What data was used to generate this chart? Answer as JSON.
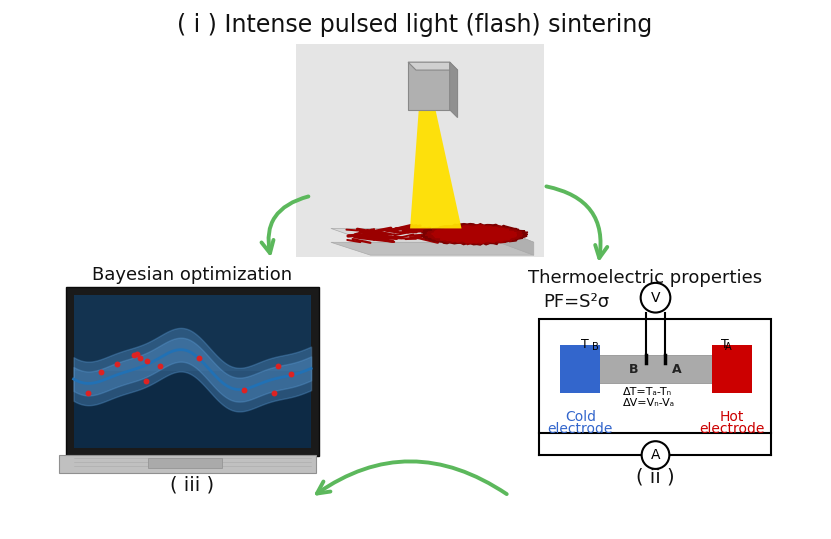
{
  "title": "( i ) Intense pulsed light (flash) sintering",
  "title_fontsize": 17,
  "bg_color": "#ffffff",
  "bayesian_label": "Bayesian optimization",
  "thermo_label": "Thermoelectric properties",
  "pf_formula": "PF=S²σ",
  "label_iii": "( iii )",
  "label_ii": "( ii )",
  "arrow_color": "#5cb85c",
  "cold_color": "#3366CC",
  "hot_color": "#CC0000",
  "gray_color": "#999999"
}
